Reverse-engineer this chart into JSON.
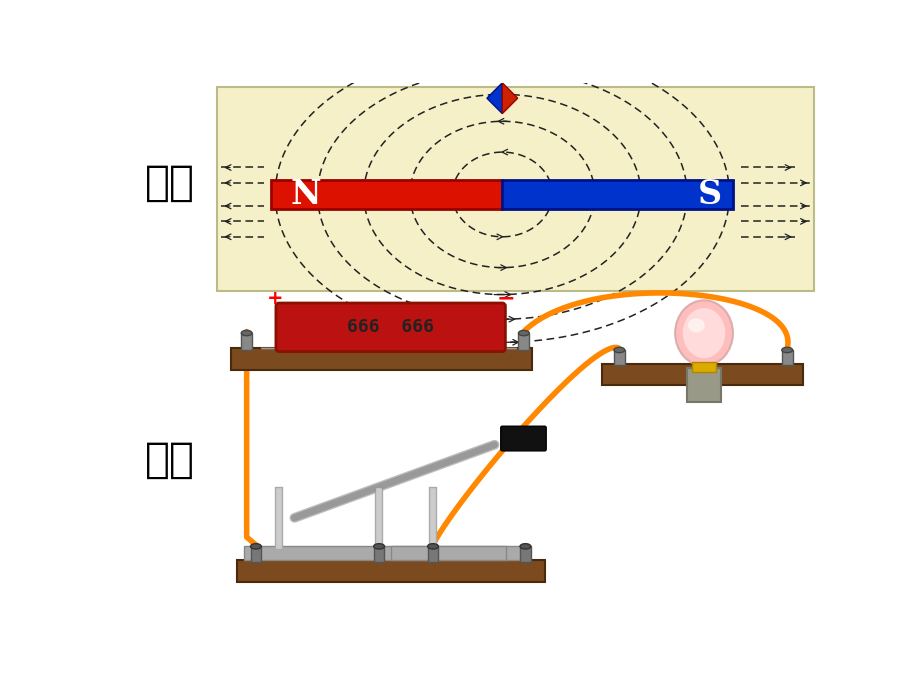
{
  "label_magnet": "磁铁",
  "label_circuit": "电路",
  "bg_color": "#ffffff",
  "magnet_bg": "#f5f0c8",
  "magnet_n_color": "#dd1100",
  "magnet_s_color": "#0033cc",
  "magnet_n_label": "N",
  "magnet_s_label": "S",
  "wire_color": "#ff8800",
  "wood_color": "#7B4A1E",
  "wood_edge": "#4a2a0a",
  "field_color": "#222222",
  "compass_red": "#cc2200",
  "compass_blue": "#0033cc"
}
